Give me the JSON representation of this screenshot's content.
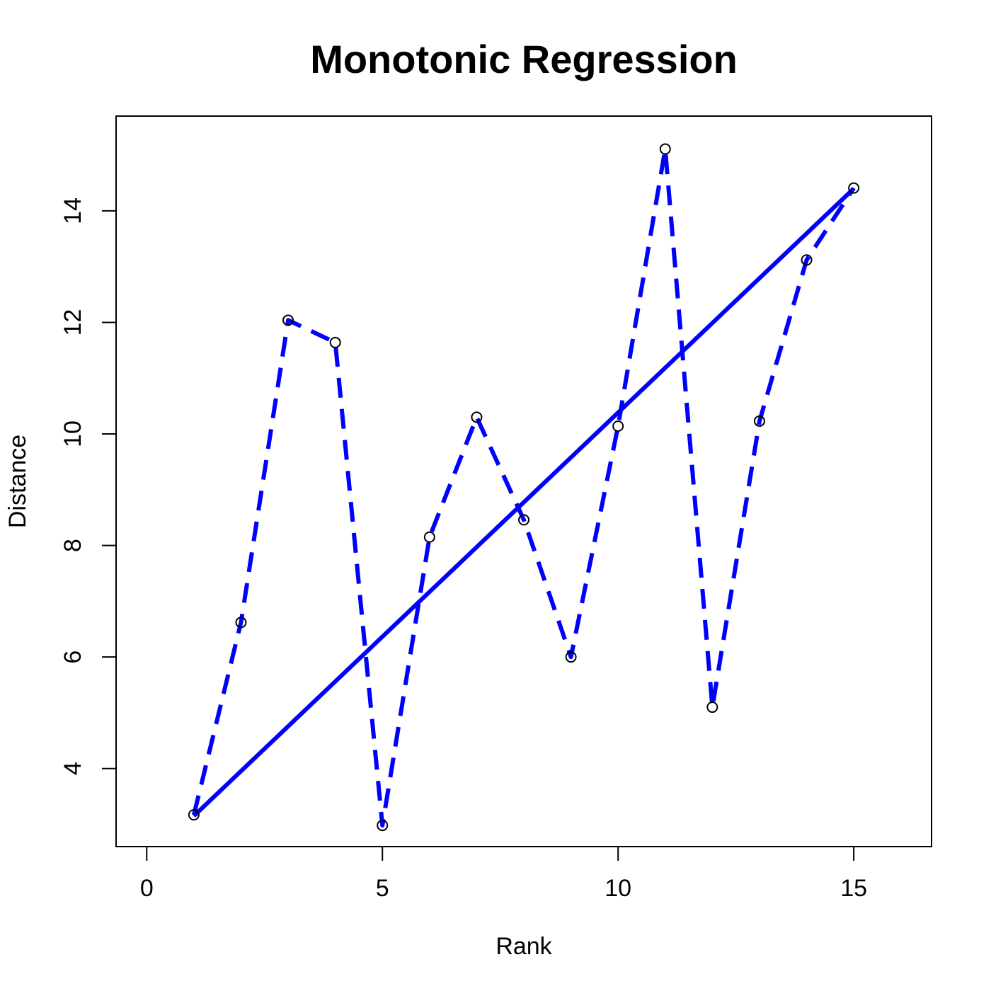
{
  "chart_data": {
    "type": "line",
    "title": "Monotonic Regression",
    "xlabel": "Rank",
    "ylabel": "Distance",
    "xlim": [
      -0.65,
      16.65
    ],
    "ylim": [
      2.6,
      15.7
    ],
    "xticks": [
      0,
      5,
      10,
      15
    ],
    "yticks": [
      4,
      6,
      8,
      10,
      12,
      14
    ],
    "grid": false,
    "legend": "none",
    "series": [
      {
        "style": "points-dashed",
        "color": "#0000ff",
        "x": [
          1,
          2,
          3,
          4,
          5,
          6,
          7,
          8,
          9,
          10,
          11,
          12,
          13,
          14,
          15
        ],
        "y": [
          3.17,
          6.62,
          12.04,
          11.64,
          2.98,
          8.15,
          10.3,
          8.46,
          6.0,
          10.14,
          15.11,
          5.1,
          10.23,
          13.12,
          14.41
        ]
      },
      {
        "style": "solid",
        "color": "#0000ff",
        "x": [
          1,
          15
        ],
        "y": [
          3.15,
          14.4
        ]
      }
    ]
  }
}
